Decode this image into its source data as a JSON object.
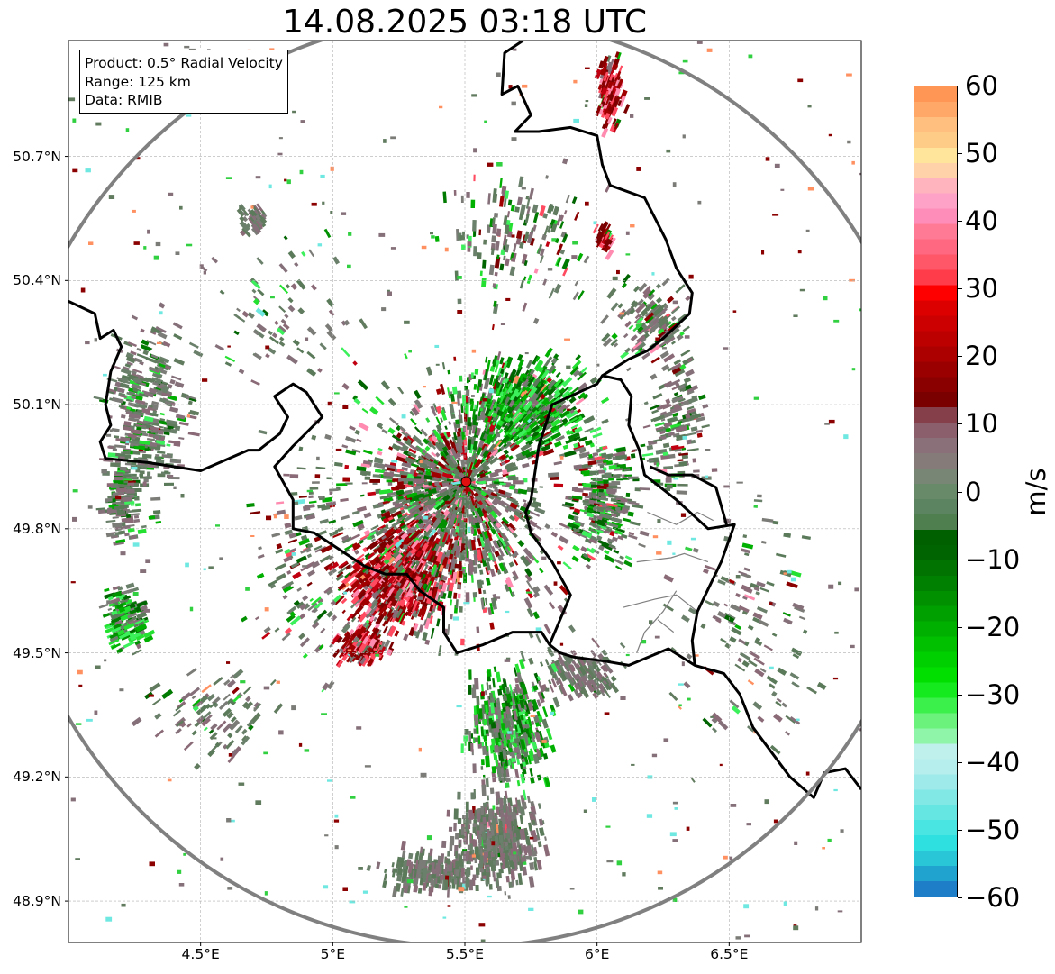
{
  "title": "14.08.2025 03:18 UTC",
  "info_box": {
    "product": "Product: 0.5° Radial Velocity",
    "range": "Range: 125 km",
    "data": "Data: RMIB"
  },
  "axes": {
    "lat_ticks": [
      "50.7°N",
      "50.4°N",
      "50.1°N",
      "49.8°N",
      "49.5°N",
      "49.2°N",
      "48.9°N"
    ],
    "lon_ticks": [
      "4.5°E",
      "5°E",
      "5.5°E",
      "6°E",
      "6.5°E"
    ],
    "lat_range": [
      48.8,
      50.98
    ],
    "lon_range": [
      4.0,
      7.0
    ],
    "grid": true
  },
  "radar_site": {
    "lon": 5.505,
    "lat": 49.914,
    "color": "#e01010"
  },
  "range_ring_color": "#808080",
  "colorbar": {
    "unit": "m/s",
    "min": -60,
    "max": 60,
    "tick_labels": [
      "60",
      "50",
      "40",
      "30",
      "20",
      "10",
      "0",
      "−10",
      "−20",
      "−30",
      "−40",
      "−50",
      "−60"
    ],
    "colors_bottom_to_top": [
      "#1f7ec8",
      "#21a3cf",
      "#29c6d8",
      "#2ee0e0",
      "#48e5e2",
      "#66e6e2",
      "#82e8e6",
      "#9eeaea",
      "#b6eeee",
      "#c0f0ec",
      "#8ff5a8",
      "#6bf27c",
      "#3bf04a",
      "#14ea1e",
      "#00df00",
      "#00d000",
      "#00c000",
      "#00b000",
      "#00a000",
      "#009000",
      "#008000",
      "#007300",
      "#006400",
      "#006000",
      "#4f7e4f",
      "#5c8460",
      "#688a68",
      "#788676",
      "#857b79",
      "#8a7079",
      "#8b5f6b",
      "#843f4a",
      "#7a0000",
      "#8a0000",
      "#9a0000",
      "#ac0000",
      "#bc0000",
      "#cc0000",
      "#dd0000",
      "#ff0000",
      "#ff3c4a",
      "#ff5668",
      "#ff6880",
      "#ff7b95",
      "#ff8db9",
      "#ffa2c8",
      "#ffb4be",
      "#ffd2aa",
      "#ffe59c",
      "#ffcc88",
      "#ffbf7f",
      "#ffa868",
      "#ff9656"
    ]
  },
  "echo_palette": {
    "near_zero": [
      "#617b5f",
      "#6a806a",
      "#7b7b77",
      "#85707a",
      "#8a6a76",
      "#5a7a5a"
    ],
    "inbound": [
      "#006400",
      "#007a00",
      "#009000",
      "#00b000",
      "#24e030",
      "#3cf05c"
    ],
    "outbound": [
      "#7a0000",
      "#8b0000",
      "#a00000",
      "#c00010",
      "#ff4a60",
      "#ff8cb0"
    ],
    "sparse": [
      "#7b7b77",
      "#85707a",
      "#617b5f",
      "#30d040",
      "#8b0000",
      "#ff9060",
      "#6ee8e0"
    ]
  },
  "echo_regions": [
    {
      "lon": 5.45,
      "lat": 49.88,
      "rlon": 0.38,
      "rlat": 0.28,
      "n": 900,
      "mix": [
        0.55,
        0.2,
        0.25
      ]
    },
    {
      "lon": 5.45,
      "lat": 49.85,
      "rlon": 0.62,
      "rlat": 0.42,
      "n": 700,
      "mix": [
        0.6,
        0.22,
        0.18
      ]
    },
    {
      "lon": 5.25,
      "lat": 49.68,
      "rlon": 0.27,
      "rlat": 0.16,
      "n": 750,
      "mix": [
        0.15,
        0.05,
        0.8
      ]
    },
    {
      "lon": 5.12,
      "lat": 49.52,
      "rlon": 0.14,
      "rlat": 0.07,
      "n": 180,
      "mix": [
        0.1,
        0.05,
        0.85
      ]
    },
    {
      "lon": 5.72,
      "lat": 50.1,
      "rlon": 0.32,
      "rlat": 0.15,
      "n": 650,
      "mix": [
        0.2,
        0.75,
        0.05
      ]
    },
    {
      "lon": 6.02,
      "lat": 49.88,
      "rlon": 0.18,
      "rlat": 0.22,
      "n": 320,
      "mix": [
        0.6,
        0.35,
        0.05
      ]
    },
    {
      "lon": 6.3,
      "lat": 50.05,
      "rlon": 0.16,
      "rlat": 0.22,
      "n": 160,
      "mix": [
        0.85,
        0.1,
        0.05
      ]
    },
    {
      "lon": 5.67,
      "lat": 49.32,
      "rlon": 0.2,
      "rlat": 0.18,
      "n": 520,
      "mix": [
        0.45,
        0.55,
        0.0
      ]
    },
    {
      "lon": 5.62,
      "lat": 49.05,
      "rlon": 0.22,
      "rlat": 0.15,
      "n": 520,
      "mix": [
        0.97,
        0.02,
        0.01
      ]
    },
    {
      "lon": 5.38,
      "lat": 48.97,
      "rlon": 0.3,
      "rlat": 0.07,
      "n": 260,
      "mix": [
        1.0,
        0.0,
        0.0
      ]
    },
    {
      "lon": 5.95,
      "lat": 49.45,
      "rlon": 0.2,
      "rlat": 0.08,
      "n": 160,
      "mix": [
        0.95,
        0.05,
        0.0
      ]
    },
    {
      "lon": 4.3,
      "lat": 50.08,
      "rlon": 0.2,
      "rlat": 0.28,
      "n": 380,
      "mix": [
        0.88,
        0.12,
        0.0
      ]
    },
    {
      "lon": 4.2,
      "lat": 49.88,
      "rlon": 0.1,
      "rlat": 0.14,
      "n": 150,
      "mix": [
        0.8,
        0.2,
        0.0
      ]
    },
    {
      "lon": 4.22,
      "lat": 49.58,
      "rlon": 0.1,
      "rlat": 0.1,
      "n": 160,
      "mix": [
        0.35,
        0.65,
        0.0
      ]
    },
    {
      "lon": 4.7,
      "lat": 50.55,
      "rlon": 0.07,
      "rlat": 0.05,
      "n": 60,
      "mix": [
        1.0,
        0.0,
        0.0
      ]
    },
    {
      "lon": 5.7,
      "lat": 50.5,
      "rlon": 0.4,
      "rlat": 0.22,
      "n": 160,
      "mix": [
        0.6,
        0.3,
        0.1
      ]
    },
    {
      "lon": 6.05,
      "lat": 50.85,
      "rlon": 0.07,
      "rlat": 0.12,
      "n": 160,
      "mix": [
        0.05,
        0.05,
        0.9
      ]
    },
    {
      "lon": 6.03,
      "lat": 50.5,
      "rlon": 0.05,
      "rlat": 0.04,
      "n": 45,
      "mix": [
        0.0,
        0.05,
        0.95
      ]
    },
    {
      "lon": 6.2,
      "lat": 50.3,
      "rlon": 0.2,
      "rlat": 0.12,
      "n": 140,
      "mix": [
        0.8,
        0.15,
        0.05
      ]
    },
    {
      "lon": 4.9,
      "lat": 49.7,
      "rlon": 0.28,
      "rlat": 0.4,
      "n": 140,
      "mix": [
        0.75,
        0.15,
        0.1
      ]
    },
    {
      "lon": 6.55,
      "lat": 49.6,
      "rlon": 0.35,
      "rlat": 0.45,
      "n": 130,
      "mix": [
        0.9,
        0.05,
        0.05
      ]
    },
    {
      "lon": 4.55,
      "lat": 49.35,
      "rlon": 0.3,
      "rlat": 0.15,
      "n": 90,
      "mix": [
        0.85,
        0.15,
        0.0
      ]
    },
    {
      "lon": 4.8,
      "lat": 50.3,
      "rlon": 0.4,
      "rlat": 0.3,
      "n": 80,
      "mix": [
        0.85,
        0.15,
        0.0
      ]
    }
  ],
  "borders_thick": [
    [
      [
        4.0,
        50.35
      ],
      [
        4.1,
        50.32
      ],
      [
        4.12,
        50.26
      ],
      [
        4.17,
        50.28
      ],
      [
        4.2,
        50.24
      ],
      [
        4.16,
        50.18
      ],
      [
        4.14,
        50.1
      ],
      [
        4.16,
        50.05
      ],
      [
        4.12,
        50.01
      ],
      [
        4.14,
        49.97
      ],
      [
        4.3,
        49.96
      ],
      [
        4.5,
        49.94
      ],
      [
        4.68,
        49.99
      ],
      [
        4.72,
        49.99
      ],
      [
        4.8,
        50.03
      ],
      [
        4.83,
        50.07
      ],
      [
        4.78,
        50.12
      ],
      [
        4.85,
        50.15
      ],
      [
        4.9,
        50.13
      ],
      [
        4.96,
        50.07
      ],
      [
        4.85,
        50.0
      ],
      [
        4.78,
        49.95
      ],
      [
        4.85,
        49.87
      ],
      [
        4.85,
        49.8
      ],
      [
        4.93,
        49.79
      ],
      [
        5.12,
        49.71
      ],
      [
        5.2,
        49.69
      ],
      [
        5.28,
        49.69
      ],
      [
        5.33,
        49.65
      ],
      [
        5.42,
        49.61
      ],
      [
        5.42,
        49.55
      ],
      [
        5.47,
        49.5
      ],
      [
        5.57,
        49.52
      ],
      [
        5.68,
        49.55
      ],
      [
        5.79,
        49.55
      ],
      [
        5.82,
        49.52
      ],
      [
        5.86,
        49.5
      ],
      [
        5.91,
        49.49
      ],
      [
        6.03,
        49.48
      ],
      [
        6.12,
        49.47
      ],
      [
        6.27,
        49.51
      ],
      [
        6.37,
        49.47
      ],
      [
        6.48,
        49.45
      ],
      [
        6.54,
        49.4
      ],
      [
        6.59,
        49.32
      ],
      [
        6.73,
        49.2
      ],
      [
        6.82,
        49.15
      ],
      [
        6.86,
        49.21
      ],
      [
        6.94,
        49.22
      ],
      [
        7.0,
        49.17
      ]
    ],
    [
      [
        5.82,
        49.52
      ],
      [
        5.9,
        49.64
      ],
      [
        5.83,
        49.72
      ],
      [
        5.75,
        49.79
      ],
      [
        5.73,
        49.84
      ],
      [
        5.75,
        49.87
      ],
      [
        5.78,
        50.0
      ],
      [
        5.83,
        50.1
      ],
      [
        6.0,
        50.15
      ],
      [
        6.02,
        50.17
      ],
      [
        6.09,
        50.16
      ],
      [
        6.13,
        50.12
      ],
      [
        6.12,
        50.05
      ],
      [
        6.16,
        49.99
      ],
      [
        6.18,
        49.93
      ],
      [
        6.3,
        49.87
      ],
      [
        6.42,
        49.8
      ],
      [
        6.52,
        49.81
      ],
      [
        6.47,
        49.72
      ],
      [
        6.38,
        49.6
      ],
      [
        6.36,
        49.53
      ],
      [
        6.37,
        49.47
      ]
    ],
    [
      [
        6.02,
        50.17
      ],
      [
        6.12,
        50.21
      ],
      [
        6.19,
        50.23
      ],
      [
        6.25,
        50.26
      ],
      [
        6.35,
        50.32
      ],
      [
        6.36,
        50.37
      ],
      [
        6.3,
        50.43
      ],
      [
        6.26,
        50.5
      ],
      [
        6.22,
        50.55
      ],
      [
        6.18,
        50.6
      ],
      [
        6.05,
        50.63
      ],
      [
        6.02,
        50.68
      ],
      [
        6.0,
        50.75
      ],
      [
        5.9,
        50.77
      ],
      [
        5.78,
        50.76
      ],
      [
        5.69,
        50.76
      ],
      [
        5.75,
        50.8
      ],
      [
        5.7,
        50.87
      ],
      [
        5.64,
        50.85
      ],
      [
        5.65,
        50.95
      ],
      [
        5.72,
        50.98
      ]
    ],
    [
      [
        6.49,
        49.81
      ],
      [
        6.45,
        49.9
      ],
      [
        6.36,
        49.93
      ],
      [
        6.27,
        49.93
      ],
      [
        6.2,
        49.95
      ]
    ]
  ],
  "borders_thin": [
    [
      [
        6.19,
        49.84
      ],
      [
        6.3,
        49.81
      ],
      [
        6.38,
        49.84
      ],
      [
        6.44,
        49.82
      ]
    ],
    [
      [
        6.15,
        49.72
      ],
      [
        6.28,
        49.73
      ],
      [
        6.33,
        49.74
      ],
      [
        6.42,
        49.72
      ]
    ],
    [
      [
        6.1,
        49.61
      ],
      [
        6.22,
        49.63
      ],
      [
        6.3,
        49.64
      ],
      [
        6.38,
        49.6
      ]
    ],
    [
      [
        6.15,
        49.5
      ],
      [
        6.18,
        49.55
      ],
      [
        6.25,
        49.6
      ],
      [
        6.3,
        49.65
      ]
    ],
    [
      [
        6.23,
        49.58
      ],
      [
        6.29,
        49.55
      ]
    ]
  ]
}
